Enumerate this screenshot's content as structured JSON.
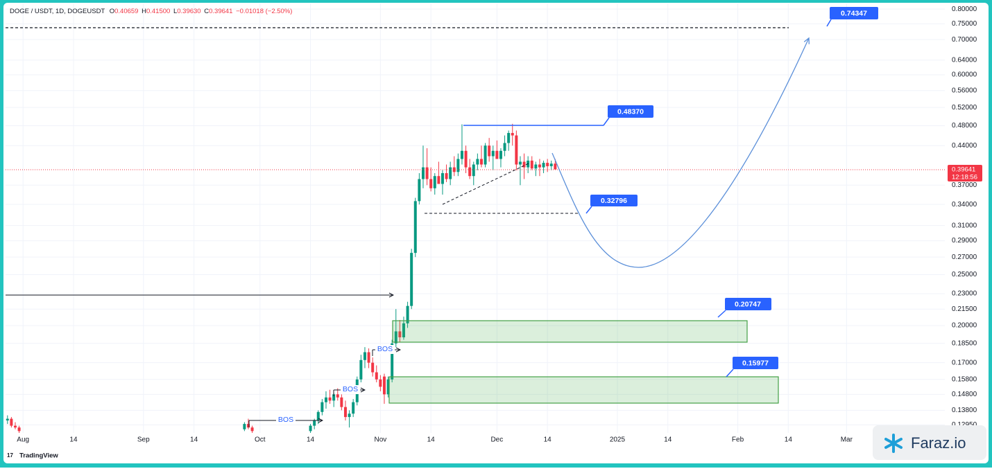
{
  "chart_data": {
    "type": "candlestick",
    "title": "DOGE / USDT, 1D, DOGEUSDT",
    "legend_values": [
      {
        "label": "O",
        "value": "0.40659"
      },
      {
        "label": "H",
        "value": "0.41500"
      },
      {
        "label": "L",
        "value": "0.39630"
      },
      {
        "label": "C",
        "value": "0.39641"
      }
    ],
    "change": "−0.01018 (−2.50%)",
    "log_scale": true,
    "grid": true,
    "up_color": "#089981",
    "down_color": "#f23645",
    "x": [
      -4,
      -3,
      -2,
      -1,
      57,
      58,
      59,
      74,
      75,
      76,
      77,
      78,
      79,
      80,
      81,
      82,
      83,
      84,
      85,
      86,
      87,
      88,
      89,
      90,
      91,
      92,
      93,
      94,
      95,
      96,
      97,
      98,
      99,
      100,
      101,
      102,
      103,
      104,
      105,
      106,
      107,
      108,
      109,
      110,
      111,
      112,
      113,
      114,
      115,
      116,
      117,
      118,
      119,
      120,
      121,
      122,
      123,
      124,
      125,
      126,
      127,
      128,
      129,
      130,
      131,
      132,
      133,
      134,
      135,
      136,
      137
    ],
    "open": [
      0.132,
      0.133,
      0.129,
      0.128,
      0.127,
      0.13,
      0.128,
      0.126,
      0.129,
      0.132,
      0.137,
      0.143,
      0.146,
      0.144,
      0.148,
      0.146,
      0.14,
      0.134,
      0.136,
      0.143,
      0.158,
      0.172,
      0.178,
      0.17,
      0.163,
      0.158,
      0.16,
      0.148,
      0.158,
      0.185,
      0.195,
      0.19,
      0.202,
      0.218,
      0.275,
      0.345,
      0.38,
      0.4,
      0.38,
      0.365,
      0.385,
      0.372,
      0.39,
      0.38,
      0.4,
      0.392,
      0.415,
      0.43,
      0.4,
      0.385,
      0.405,
      0.415,
      0.405,
      0.44,
      0.42,
      0.43,
      0.415,
      0.43,
      0.445,
      0.465,
      0.46,
      0.405,
      0.41,
      0.4,
      0.412,
      0.398,
      0.405,
      0.4,
      0.408,
      0.402,
      0.40659
    ],
    "high": [
      0.135,
      0.134,
      0.131,
      0.129,
      0.131,
      0.133,
      0.129,
      0.13,
      0.133,
      0.138,
      0.145,
      0.15,
      0.151,
      0.149,
      0.152,
      0.148,
      0.144,
      0.138,
      0.145,
      0.16,
      0.176,
      0.182,
      0.181,
      0.174,
      0.168,
      0.161,
      0.162,
      0.16,
      0.188,
      0.215,
      0.205,
      0.208,
      0.222,
      0.28,
      0.35,
      0.39,
      0.44,
      0.435,
      0.4,
      0.39,
      0.41,
      0.395,
      0.405,
      0.41,
      0.42,
      0.425,
      0.483,
      0.44,
      0.415,
      0.41,
      0.425,
      0.44,
      0.445,
      0.455,
      0.44,
      0.45,
      0.435,
      0.46,
      0.47,
      0.484,
      0.47,
      0.42,
      0.425,
      0.42,
      0.42,
      0.41,
      0.415,
      0.412,
      0.415,
      0.412,
      0.415
    ],
    "low": [
      0.13,
      0.128,
      0.127,
      0.125,
      0.126,
      0.127,
      0.125,
      0.124,
      0.127,
      0.13,
      0.135,
      0.139,
      0.142,
      0.14,
      0.144,
      0.138,
      0.132,
      0.128,
      0.134,
      0.141,
      0.156,
      0.166,
      0.166,
      0.16,
      0.156,
      0.15,
      0.142,
      0.146,
      0.156,
      0.182,
      0.186,
      0.188,
      0.198,
      0.215,
      0.27,
      0.34,
      0.365,
      0.37,
      0.36,
      0.355,
      0.375,
      0.355,
      0.375,
      0.37,
      0.385,
      0.385,
      0.405,
      0.39,
      0.38,
      0.37,
      0.395,
      0.4,
      0.4,
      0.41,
      0.395,
      0.415,
      0.4,
      0.42,
      0.43,
      0.44,
      0.395,
      0.37,
      0.38,
      0.39,
      0.395,
      0.385,
      0.385,
      0.39,
      0.392,
      0.395,
      0.3963
    ],
    "close": [
      0.133,
      0.129,
      0.128,
      0.126,
      0.13,
      0.128,
      0.126,
      0.129,
      0.132,
      0.137,
      0.143,
      0.146,
      0.144,
      0.148,
      0.146,
      0.14,
      0.134,
      0.136,
      0.143,
      0.158,
      0.172,
      0.178,
      0.17,
      0.163,
      0.158,
      0.153,
      0.148,
      0.158,
      0.185,
      0.195,
      0.19,
      0.202,
      0.218,
      0.275,
      0.345,
      0.38,
      0.4,
      0.38,
      0.365,
      0.385,
      0.372,
      0.39,
      0.38,
      0.4,
      0.392,
      0.415,
      0.43,
      0.4,
      0.385,
      0.405,
      0.415,
      0.405,
      0.44,
      0.42,
      0.43,
      0.415,
      0.43,
      0.445,
      0.465,
      0.46,
      0.405,
      0.41,
      0.4,
      0.412,
      0.398,
      0.405,
      0.4,
      0.408,
      0.402,
      0.40659,
      0.39641
    ],
    "xlim": [
      -4.5,
      237.3
    ],
    "xticks": [
      {
        "value": 0,
        "label": "Aug"
      },
      {
        "value": 13,
        "label": "14"
      },
      {
        "value": 31,
        "label": "Sep"
      },
      {
        "value": 44,
        "label": "14"
      },
      {
        "value": 61,
        "label": "Oct"
      },
      {
        "value": 74,
        "label": "14"
      },
      {
        "value": 92,
        "label": "Nov"
      },
      {
        "value": 105,
        "label": "14"
      },
      {
        "value": 122,
        "label": "Dec"
      },
      {
        "value": 135,
        "label": "14"
      },
      {
        "value": 153,
        "label": "2025"
      },
      {
        "value": 166,
        "label": "14"
      },
      {
        "value": 184,
        "label": "Feb"
      },
      {
        "value": 197,
        "label": "14"
      },
      {
        "value": 212,
        "label": "Mar"
      }
    ],
    "ylim": [
      0.125,
      0.82
    ],
    "yticks": [
      {
        "value": 0.8,
        "label": "0.80000"
      },
      {
        "value": 0.75,
        "label": "0.75000"
      },
      {
        "value": 0.7,
        "label": "0.70000"
      },
      {
        "value": 0.64,
        "label": "0.64000"
      },
      {
        "value": 0.6,
        "label": "0.60000"
      },
      {
        "value": 0.56,
        "label": "0.56000"
      },
      {
        "value": 0.52,
        "label": "0.52000"
      },
      {
        "value": 0.48,
        "label": "0.48000"
      },
      {
        "value": 0.44,
        "label": "0.44000"
      },
      {
        "value": 0.37,
        "label": "0.37000"
      },
      {
        "value": 0.34,
        "label": "0.34000"
      },
      {
        "value": 0.31,
        "label": "0.31000"
      },
      {
        "value": 0.29,
        "label": "0.29000"
      },
      {
        "value": 0.27,
        "label": "0.27000"
      },
      {
        "value": 0.25,
        "label": "0.25000"
      },
      {
        "value": 0.23,
        "label": "0.23000"
      },
      {
        "value": 0.215,
        "label": "0.21500"
      },
      {
        "value": 0.2,
        "label": "0.20000"
      },
      {
        "value": 0.185,
        "label": "0.18500"
      },
      {
        "value": 0.17,
        "label": "0.17000"
      },
      {
        "value": 0.158,
        "label": "0.15800"
      },
      {
        "value": 0.148,
        "label": "0.14800"
      },
      {
        "value": 0.138,
        "label": "0.13800"
      },
      {
        "value": 0.1295,
        "label": "0.12950"
      }
    ],
    "price_label": "0.39641",
    "countdown": "12:18:56",
    "annotations": {
      "targets": [
        "0.74347",
        "0.48370",
        "0.32796",
        "0.20747",
        "0.15977"
      ],
      "bos": [
        "BOS",
        "BOS",
        "BOS"
      ]
    }
  },
  "branding": {
    "logo": "TradingView",
    "watermark": "Faraz.io"
  }
}
